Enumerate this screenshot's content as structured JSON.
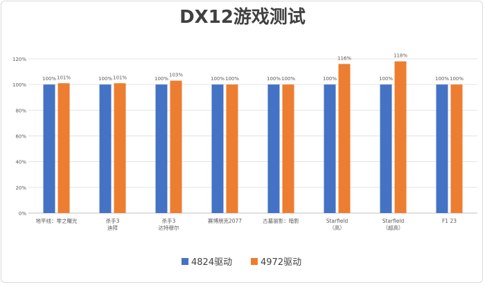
{
  "chart_data": {
    "type": "bar",
    "title": "DX12游戏测试",
    "categories": [
      [
        "地平线：零之曙光"
      ],
      [
        "杀手3",
        "迪拜"
      ],
      [
        "杀手3",
        "达特穆尔"
      ],
      [
        "赛博朋克2077"
      ],
      [
        "古墓丽影：暗影"
      ],
      [
        "Starfield",
        "（高）"
      ],
      [
        "Starfield",
        "（超高）"
      ],
      [
        "F1 23"
      ]
    ],
    "series": [
      {
        "name": "4824驱动",
        "color": "#4472c4",
        "values": [
          100,
          100,
          100,
          100,
          100,
          100,
          100,
          100
        ],
        "labels": [
          "100%",
          "100%",
          "100%",
          "100%",
          "100%",
          "100%",
          "100%",
          "100%"
        ]
      },
      {
        "name": "4972驱动",
        "color": "#ed7d31",
        "values": [
          101,
          101,
          103,
          100,
          100,
          116,
          118,
          100
        ],
        "labels": [
          "101%",
          "101%",
          "103%",
          "100%",
          "100%",
          "116%",
          "118%",
          "100%"
        ]
      }
    ],
    "ylim": [
      0,
      120
    ],
    "yticks": [
      "0%",
      "20%",
      "40%",
      "60%",
      "80%",
      "100%",
      "120%"
    ],
    "grid": true,
    "legend": "bottom"
  }
}
